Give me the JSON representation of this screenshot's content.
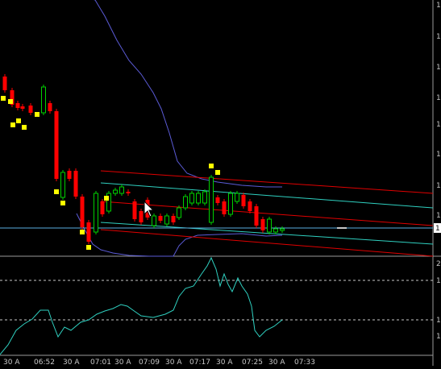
{
  "colors": {
    "background": "#000000",
    "grid": "#3a3a3a",
    "bollinger": "#5b5bd6",
    "channel_red": "#e00000",
    "channel_teal": "#2fd0c0",
    "candle_up": "#00d000",
    "candle_down": "#ff0000",
    "fractal": "#ffff00",
    "oscillator": "#2fd0c0",
    "level_line": "#c8c8c8",
    "price_line": "#5aaee0",
    "axis_text": "#c8c8c8"
  },
  "price_axis": {
    "labels": [
      "1",
      "1",
      "1",
      "1",
      "1",
      "1",
      "1",
      "1"
    ],
    "current_price": "1"
  },
  "oscillator_axis": {
    "labels": [
      "2",
      "1",
      "1",
      "1"
    ]
  },
  "time_axis": {
    "labels": [
      "30 A",
      "06:52",
      "30 A",
      "07:01",
      "30 A",
      "07:09",
      "30 A",
      "07:17",
      "30 A",
      "07:25",
      "30 A",
      "07:33"
    ]
  },
  "cursor": {
    "icon": "arrow-cursor-icon"
  }
}
